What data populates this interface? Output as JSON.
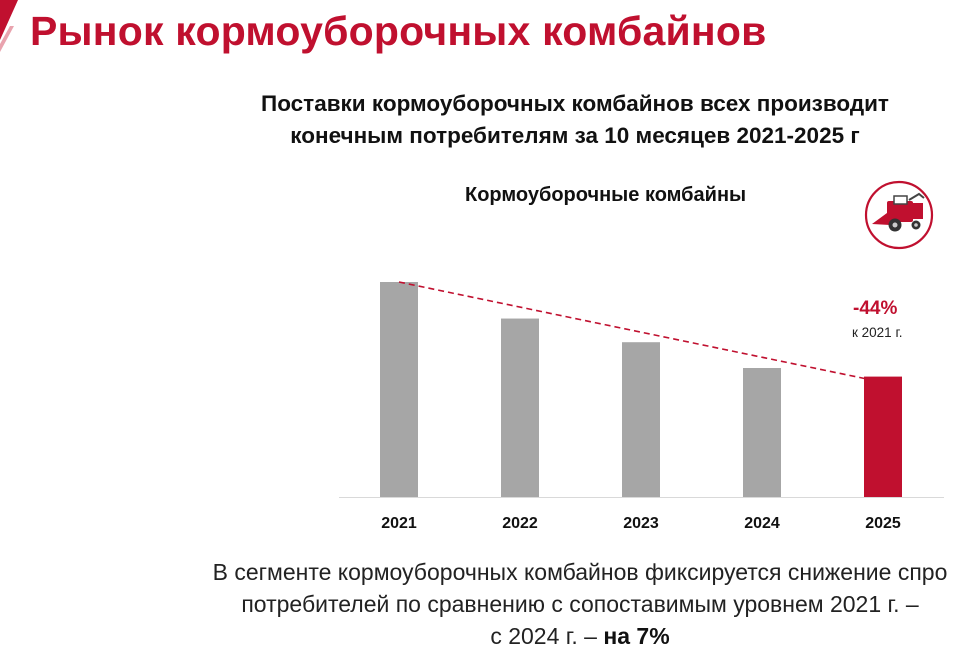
{
  "page_title": "Рынок кормоуборочных комбайнов",
  "subtitle": {
    "line1": "Поставки кормоуборочных комбайнов всех производит",
    "line2": "конечным потребителям за 10 месяцев 2021-2025 г"
  },
  "annotation": {
    "change": "-44%",
    "note": "к 2021 г."
  },
  "caption": {
    "line1": "В сегменте кормоуборочных комбайнов фиксируется снижение спро",
    "line2": "потребителей по сравнению с сопоставимым уровнем 2021 г. –",
    "line3_prefix": "с 2024 г. – ",
    "line3_bold": "на 7%"
  },
  "icons": {
    "corner": "red-corner-accent",
    "badge": "forage-harvester-icon"
  },
  "colors": {
    "brand_red": "#c0102f",
    "bar_gray": "#a6a6a6",
    "bar_highlight": "#c0102f",
    "trend_line": "#c0102f"
  },
  "chart_data": {
    "type": "bar",
    "title": "Кормоуборочные комбайны",
    "categories": [
      "2021",
      "2022",
      "2023",
      "2024",
      "2025"
    ],
    "values": [
      100,
      83,
      72,
      60,
      56
    ],
    "highlight_index": 4,
    "ylim": [
      0,
      100
    ],
    "y_axis_visible": false,
    "grid": false,
    "trend_line": {
      "style": "dashed",
      "from": "2021",
      "to": "2025"
    }
  }
}
